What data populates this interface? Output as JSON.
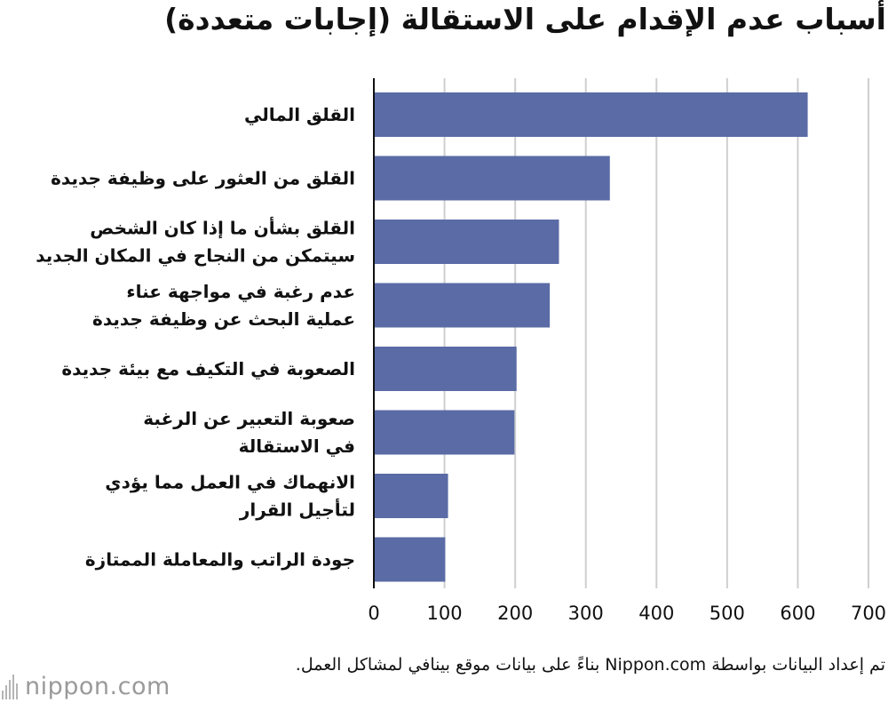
{
  "title": "أسباب عدم الإقدام على الاستقالة (إجابات متعددة)",
  "chart_data": {
    "type": "bar",
    "orientation": "horizontal",
    "categories": [
      [
        "القلق المالي"
      ],
      [
        "القلق من العثور على وظيفة جديدة"
      ],
      [
        "القلق بشأن ما إذا كان الشخص",
        "سيتمكن من النجاح في المكان الجديد"
      ],
      [
        "عدم رغبة في مواجهة عناء",
        "عملية البحث عن وظيفة جديدة"
      ],
      [
        "الصعوبة في التكيف مع بيئة جديدة"
      ],
      [
        "صعوبة التعبير عن الرغبة",
        "في الاستقالة"
      ],
      [
        "الانهماك في العمل مما يؤدي",
        "لتأجيل القرار"
      ],
      [
        "جودة الراتب والمعاملة الممتازة"
      ]
    ],
    "values": [
      614,
      334,
      262,
      249,
      202,
      199,
      105,
      101
    ],
    "xlim": [
      0,
      700
    ],
    "xticks": [
      "0",
      "100",
      "200",
      "300",
      "400",
      "500",
      "600",
      "700"
    ],
    "grid": true,
    "bar_color": "#5a6ba6"
  },
  "source": "تم إعداد البيانات بواسطة Nippon.com بناءً على بيانات موقع بينافي لمشاكل العمل.",
  "logo": {
    "text": "nippon.com",
    "icon": "nippon-bars-icon"
  }
}
